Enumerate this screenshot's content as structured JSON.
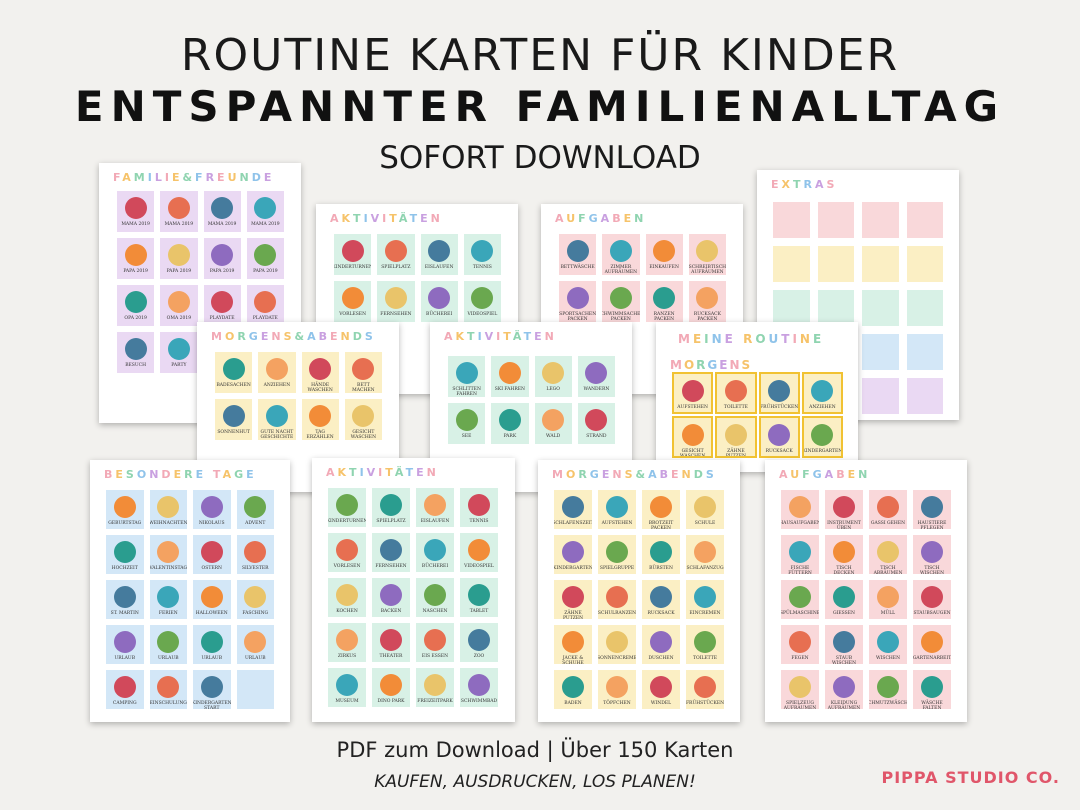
{
  "header": {
    "title": "ROUTINE KARTEN FÜR KINDER",
    "subtitle": "ENTSPANNTER FAMILIENALLTAG",
    "tagline": "SOFORT DOWNLOAD"
  },
  "footer": {
    "line1": "PDF zum Download |  Über 150  Karten",
    "line2": "KAUFEN, AUSDRUCKEN, LOS PLANEN!",
    "brand": "PIPPA STUDIO CO."
  },
  "colors": {
    "background": "#f2f1ee",
    "brand": "#e0566a",
    "purple": "#ead9f3",
    "mint": "#d8f1e6",
    "yellow": "#fbefc4",
    "blue": "#d3e7f7",
    "pink": "#f9d8da"
  },
  "sheets": {
    "familie": {
      "title": "FAMILIE&FREUNDE",
      "cards": [
        "MAMA 2019",
        "MAMA 2019",
        "MAMA 2019",
        "MAMA 2019",
        "PAPA 2019",
        "PAPA 2019",
        "PAPA 2019",
        "PAPA 2019",
        "OPA 2019",
        "OMA 2019",
        "PLAYDATE",
        "PLAYDATE",
        "BESUCH",
        "PARTY",
        "",
        ""
      ]
    },
    "aktivitaeten_back": {
      "title": "AKTIVITÄTEN",
      "cards": [
        "KINDERTURNEN",
        "SPIELPLATZ",
        "EISLAUFEN",
        "TENNIS",
        "VORLESEN",
        "FERNSEHEN",
        "BÜCHEREI",
        "VIDEOSPIEL"
      ]
    },
    "aufgaben_back": {
      "title": "AUFGABEN",
      "cards": [
        "BETTWÄSCHE",
        "ZIMMER AUFRÄUMEN",
        "EINKAUFEN",
        "SCHREIBTISCH AUFRÄUMEN",
        "SPORTSACHEN PACKEN",
        "SCHWIMMSACHEN PACKEN",
        "RANZEN PACKEN",
        "RUCKSACK PACKEN"
      ]
    },
    "extras": {
      "title": "EXTRAS"
    },
    "morgens_mid": {
      "title": "MORGENS&ABENDS",
      "cards": [
        "BADESACHEN",
        "ANZIEHEN",
        "HÄNDE WASCHEN",
        "BETT MACHEN",
        "SONNENHUT",
        "GUTE NACHT GESCHICHTE",
        "TAG ERZÄHLEN",
        "GESICHT WASCHEN"
      ]
    },
    "aktivitaeten_mid": {
      "title": "AKTIVITÄTEN",
      "cards": [
        "SCHLITTEN FAHREN",
        "SKI FAHREN",
        "LEGO",
        "WANDERN",
        "SEE",
        "PARK",
        "WALD",
        "STRAND"
      ]
    },
    "routine": {
      "title": "MEINE ROUTINE",
      "subtitle": "MORGENS",
      "cards": [
        "AUFSTEHEN",
        "TOILETTE",
        "FRÜHSTÜCKEN",
        "ANZIEHEN",
        "GESICHT WASCHEN",
        "ZÄHNE PUTZEN",
        "RUCKSACK",
        "KINDERGARTEN"
      ]
    },
    "besondere": {
      "title": "BESONDERE TAGE",
      "cards": [
        "GEBURTSTAG",
        "WEIHNACHTEN",
        "NIKOLAUS",
        "ADVENT",
        "HOCHZEIT",
        "VALENTINSTAG",
        "OSTERN",
        "SILVESTER",
        "ST. MARTIN",
        "FERIEN",
        "HALLOWEEN",
        "FASCHING",
        "URLAUB",
        "URLAUB",
        "URLAUB",
        "URLAUB",
        "CAMPING",
        "EINSCHULUNG",
        "KINDERGARTEN START",
        ""
      ]
    },
    "aktivitaeten_front": {
      "title": "AKTIVITÄTEN",
      "cards": [
        "KINDERTURNEN",
        "SPIELPLATZ",
        "EISLAUFEN",
        "TENNIS",
        "VORLESEN",
        "FERNSEHEN",
        "BÜCHEREI",
        "VIDEOSPIEL",
        "KOCHEN",
        "BACKEN",
        "NASCHEN",
        "TABLET",
        "ZIRKUS",
        "THEATER",
        "EIS ESSEN",
        "ZOO",
        "MUSEUM",
        "DINO PARK",
        "FREIZEITPARK",
        "SCHWIMMBAD"
      ]
    },
    "morgens_front": {
      "title": "MORGENS&ABENDS",
      "cards": [
        "SCHLAFENSZEIT",
        "AUFSTEHEN",
        "BROTZEIT PACKEN",
        "SCHULE",
        "KINDERGARTEN",
        "SPIELGRUPPE",
        "BÜRSTEN",
        "SCHLAFANZUG",
        "ZÄHNE PUTZEN",
        "SCHULRANZEN",
        "RUCKSACK",
        "EINCREMEN",
        "JACKE & SCHUHE",
        "SONNENCREME",
        "DUSCHEN",
        "TOILETTE",
        "BADEN",
        "TÖPFCHEN",
        "WINDEL",
        "FRÜHSTÜCKEN"
      ]
    },
    "aufgaben_front": {
      "title": "AUFGABEN",
      "cards": [
        "HAUSAUFGABEN",
        "INSTRUMENT ÜBEN",
        "GASSI GEHEN",
        "HAUSTIERE PFLEGEN",
        "FISCHE FÜTTERN",
        "TISCH DECKEN",
        "TISCH ABRÄUMEN",
        "TISCH WISCHEN",
        "SPÜLMASCHINE",
        "GIESSEN",
        "MÜLL",
        "STAUBSAUGEN",
        "FEGEN",
        "STAUB WISCHEN",
        "WISCHEN",
        "GARTENARBEIT",
        "SPIELZEUG AUFRÄUMEN",
        "KLEIDUNG AUFRÄUMEN",
        "SCHMUTZWÄSCHE",
        "WÄSCHE FALTEN"
      ]
    }
  }
}
